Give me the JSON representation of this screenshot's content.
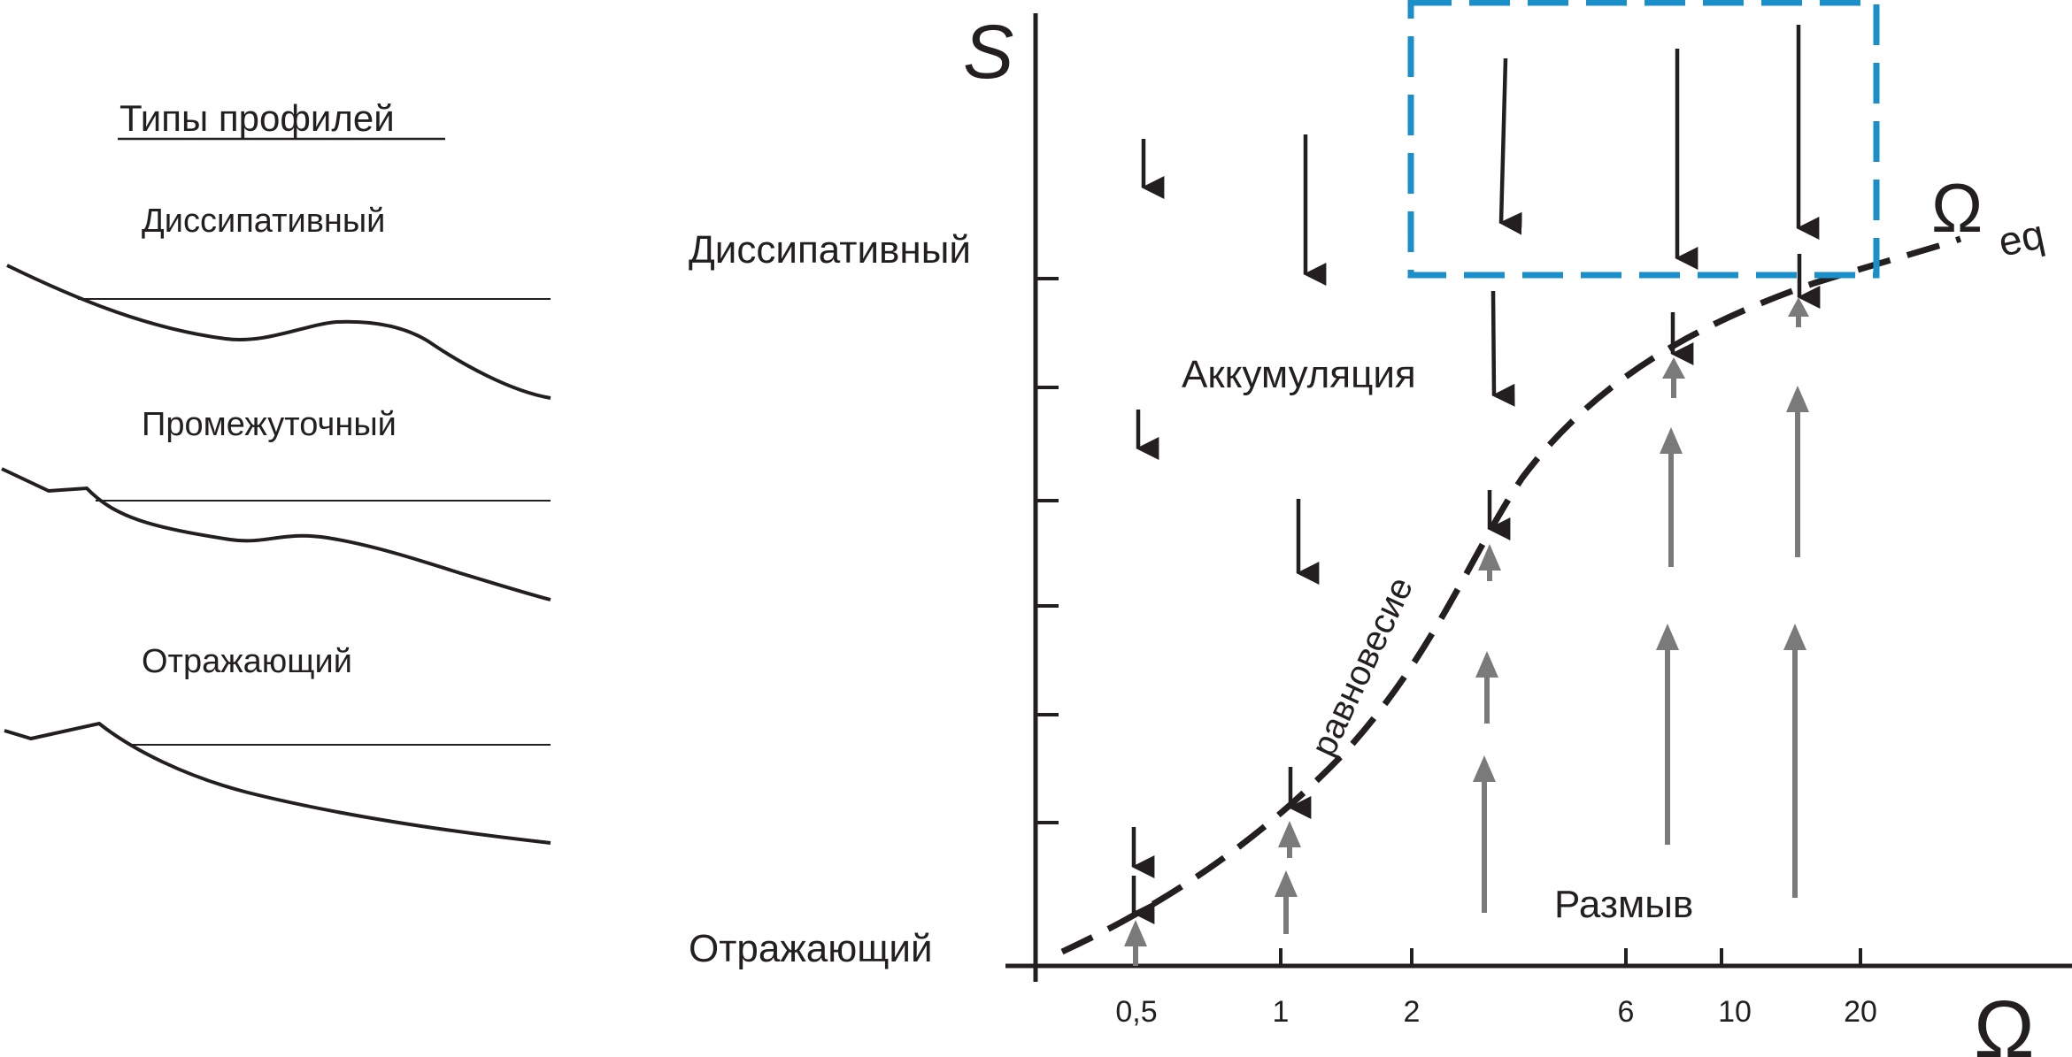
{
  "legend": {
    "title": "Типы профилей",
    "profiles": [
      {
        "label": "Диссипативный"
      },
      {
        "label": "Промежуточный"
      },
      {
        "label": "Отражающий"
      }
    ]
  },
  "diagram": {
    "y_axis_label": "S",
    "x_axis_label": "Ω",
    "y_top_label": "Диссипативный",
    "y_bottom_label": "Отражающий",
    "x_ticks": [
      "0,5",
      "1",
      "2",
      "6",
      "10",
      "20"
    ],
    "accumulation_label": "Аккумуляция",
    "erosion_label": "Размыв",
    "equilibrium_label": "равновесие",
    "curve_label_main": "Ω",
    "curve_label_sub": "eq",
    "highlight_color": "#1a8fc9",
    "down_arrow_color": "#231f20",
    "up_arrow_color": "#7a7a7a"
  }
}
